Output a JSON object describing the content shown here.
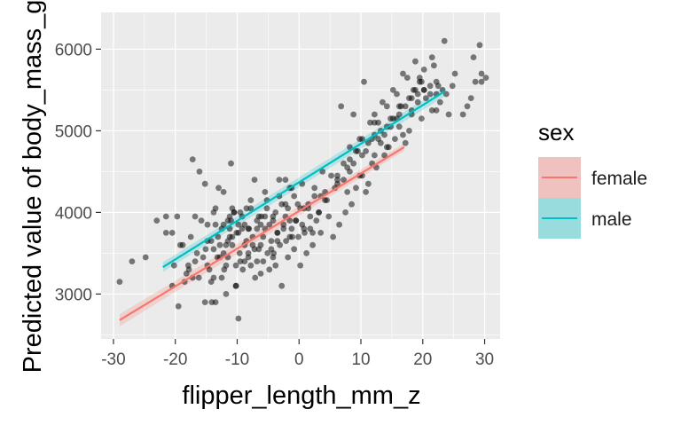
{
  "chart_data": {
    "type": "scatter",
    "xlabel": "flipper_length_mm_z",
    "ylabel": "Predicted value of body_mass_g",
    "xlim": [
      -32,
      32.5
    ],
    "ylim": [
      2450,
      6450
    ],
    "xticks": [
      -30,
      -20,
      -10,
      0,
      10,
      20,
      30
    ],
    "xtick_labels": [
      "-30",
      "-20",
      "-10",
      "0",
      "10",
      "20",
      "30"
    ],
    "yticks": [
      3000,
      4000,
      5000,
      6000
    ],
    "ytick_labels": [
      "3000",
      "4000",
      "5000",
      "6000"
    ],
    "grid": true,
    "legend": {
      "title": "sex",
      "position": "right",
      "entries": [
        {
          "label": "female",
          "color": "#F8766D"
        },
        {
          "label": "male",
          "color": "#00BFC4"
        }
      ]
    },
    "series": [
      {
        "name": "female",
        "type": "line",
        "color": "#F8766D",
        "x": [
          -29,
          17
        ],
        "y": [
          2680,
          4800
        ],
        "ci_width": [
          75,
          45
        ]
      },
      {
        "name": "male",
        "type": "line",
        "color": "#00BFC4",
        "x": [
          -22,
          23.5
        ],
        "y": [
          3330,
          5480
        ],
        "ci_width": [
          60,
          60
        ]
      }
    ],
    "points": {
      "x": [
        -29,
        -27,
        -24.8,
        -23,
        -21.5,
        -20.5,
        -19.7,
        -19.5,
        -18.8,
        -18.2,
        -17.9,
        -17.2,
        -16.2,
        -16.1,
        -15.8,
        -15.2,
        -15.1,
        -14.8,
        -14.2,
        -14.1,
        -13.5,
        -13.2,
        -13.1,
        -12.5,
        -12.2,
        -12.1,
        -11.8,
        -11.5,
        -11.2,
        -11.2,
        -11,
        -10.8,
        -10.2,
        -10.1,
        -9.8,
        -9.6,
        -9.2,
        -9.1,
        -8.8,
        -8.5,
        -8.2,
        -8.1,
        -7.8,
        -7.5,
        -7.2,
        -7.1,
        -6.8,
        -6.5,
        -6.2,
        -6.1,
        -5.8,
        -5.5,
        -5.2,
        -5.1,
        -4.8,
        -4.5,
        -4.2,
        -4.1,
        -3.8,
        -3.5,
        -3.2,
        -3.1,
        -2.8,
        -2.5,
        -2.2,
        -2.1,
        -1.8,
        -1.5,
        -1.2,
        -1.1,
        -0.8,
        -0.5,
        -0.2,
        -0.1,
        0.2,
        0.5,
        0.8,
        0.9,
        1.2,
        1.5,
        1.8,
        2.2,
        2.5,
        2.8,
        3.2,
        3.5,
        4.2,
        4.8,
        5.5,
        6.2,
        6.5,
        6.8,
        7.2,
        7.5,
        7.8,
        8.2,
        8.5,
        8.8,
        9.2,
        9.5,
        9.8,
        10.2,
        10.5,
        10.8,
        11.2,
        11.5,
        11.8,
        12.2,
        12.5,
        12.8,
        13.2,
        13.5,
        13.8,
        14.2,
        14.5,
        14.8,
        15.2,
        15.5,
        15.8,
        16.2,
        16.5,
        16.8,
        17.2,
        17.5,
        17.8,
        18.2,
        18.5,
        18.8,
        19.2,
        19.5,
        19.8,
        20.2,
        20.5,
        21.2,
        21.5,
        22.2,
        22.5,
        23.2,
        23.5,
        24.2,
        25.2,
        27.2,
        28.2,
        28.5,
        29.2,
        29.5,
        30.2,
        -21.5,
        -20.5,
        -20.2,
        -19.2,
        -18.5,
        -17.8,
        -17.5,
        -16.8,
        -16.5,
        -15.5,
        -14.8,
        -14.5,
        -13.8,
        -13.5,
        -12.8,
        -12.5,
        -11.8,
        -11.5,
        -10.8,
        -10.5,
        -9.8,
        -9.5,
        -8.8,
        -8.5,
        -7.8,
        -7.5,
        -6.8,
        -6.5,
        -5.8,
        -5.5,
        -4.8,
        -4.5,
        -3.8,
        -3.5,
        -2.8,
        -2.5,
        -1.8,
        -1.5,
        -0.8,
        -0.5,
        0.5,
        1.5,
        2.5,
        3.5,
        4.5,
        5.2,
        6.2,
        7.2,
        8.2,
        9.2,
        10.2,
        11.2,
        12.2,
        13.2,
        14.2,
        15.2,
        16.2,
        17.2,
        18.2,
        19.2,
        20.2,
        21.2,
        22.2,
        -13,
        -13.5,
        -11.5,
        -11,
        -10.5,
        -15.2,
        -12.8,
        -10.8,
        -9.2,
        -8.8,
        -10.2,
        -16.8,
        -14.8,
        -13.8,
        -11.8,
        -9.8,
        -8.2,
        -7.8,
        -6.8,
        -6.2,
        -5.2,
        -4.2,
        -3.2,
        -2.2,
        -1.2,
        1.8,
        3.8,
        7.8,
        9.8,
        11.8,
        12.8,
        14.8,
        16.8,
        18.8,
        19.8,
        21.8,
        22.8,
        24.8,
        26.5,
        27.8,
        29.5,
        -17.2,
        -14.2,
        -12.2,
        -11.2,
        -9.5,
        -7.2,
        -5.5,
        -3.5,
        -1.5,
        0.8,
        3.2,
        5.8,
        8.8,
        10.8,
        12.2,
        13.8,
        15.8,
        17.8,
        19.5,
        21.5,
        23.8,
        -13.8,
        -12.2,
        -10.2,
        -8.2,
        -6.2,
        -4.2,
        -2.2,
        0.2,
        2.2,
        4.2,
        6.2,
        8.2,
        10.2,
        12.2,
        14.2,
        16.2,
        18.2,
        20.2,
        22.2
      ],
      "y": [
        3150,
        3400,
        3450,
        3900,
        3750,
        3100,
        3950,
        2850,
        3600,
        3250,
        3350,
        4650,
        3200,
        4500,
        3900,
        2900,
        3550,
        3350,
        3150,
        2900,
        3850,
        3450,
        3700,
        3200,
        4250,
        3300,
        3000,
        3650,
        3800,
        3950,
        4600,
        3600,
        3100,
        3750,
        2700,
        3500,
        3950,
        3300,
        3600,
        4050,
        3450,
        3800,
        3350,
        3700,
        4400,
        3200,
        3900,
        3550,
        3250,
        3950,
        3400,
        3800,
        4050,
        3500,
        3300,
        3650,
        3900,
        3500,
        3350,
        3750,
        4200,
        3600,
        3100,
        3850,
        4400,
        3650,
        3450,
        3900,
        4300,
        3700,
        3550,
        3900,
        4100,
        3700,
        3350,
        3850,
        4050,
        3750,
        3500,
        4100,
        3950,
        3600,
        4200,
        3900,
        4000,
        3750,
        4150,
        3950,
        3700,
        4450,
        3850,
        5300,
        4400,
        4000,
        4550,
        4800,
        4100,
        5200,
        4300,
        4750,
        4900,
        4450,
        5600,
        4750,
        4350,
        5100,
        4900,
        5200,
        4550,
        5100,
        4850,
        5350,
        4700,
        5300,
        4800,
        5150,
        5500,
        4900,
        5450,
        5050,
        5300,
        5700,
        4850,
        5650,
        5000,
        5250,
        5500,
        5850,
        5350,
        5600,
        5150,
        5750,
        5400,
        5450,
        5900,
        5250,
        5550,
        5500,
        6100,
        5200,
        5700,
        5300,
        5900,
        5600,
        6050,
        5700,
        5650,
        3950,
        3750,
        3350,
        3600,
        3150,
        3300,
        3700,
        3950,
        3500,
        3450,
        3850,
        3300,
        3550,
        4050,
        3450,
        3800,
        3600,
        3900,
        3700,
        4000,
        3750,
        3400,
        3850,
        3650,
        4050,
        3600,
        3800,
        3950,
        3700,
        4250,
        3850,
        3550,
        4000,
        3750,
        4100,
        3800,
        4050,
        3700,
        4200,
        3900,
        4350,
        4050,
        4300,
        4200,
        4150,
        4450,
        4350,
        4600,
        4500,
        4750,
        4700,
        4850,
        4950,
        5000,
        5050,
        5150,
        5200,
        5300,
        5400,
        5450,
        5500,
        5550,
        5600,
        4300,
        2900,
        3450,
        3900,
        4000,
        4350,
        3600,
        4050,
        3800,
        3400,
        3100,
        3400,
        3650,
        4000,
        3350,
        3850,
        3500,
        4150,
        3400,
        3850,
        4150,
        3950,
        4400,
        4100,
        3800,
        3800,
        4500,
        4250,
        4450,
        4600,
        4900,
        5050,
        4950,
        5500,
        5600,
        5800,
        5350,
        5550,
        5200,
        5400,
        5600,
        3200,
        3650,
        3500,
        3700,
        4000,
        3550,
        3950,
        3650,
        4300,
        3800,
        4000,
        4300,
        4600,
        4250,
        4700,
        4950,
        5150,
        5400,
        5650,
        5250,
        5450,
        3200,
        3850,
        3350,
        3800,
        3600,
        3450,
        3950,
        4050,
        3750,
        4250,
        4400,
        4650,
        4900,
        5100,
        4800,
        5300,
        5200,
        5500,
        5450
      ]
    }
  }
}
